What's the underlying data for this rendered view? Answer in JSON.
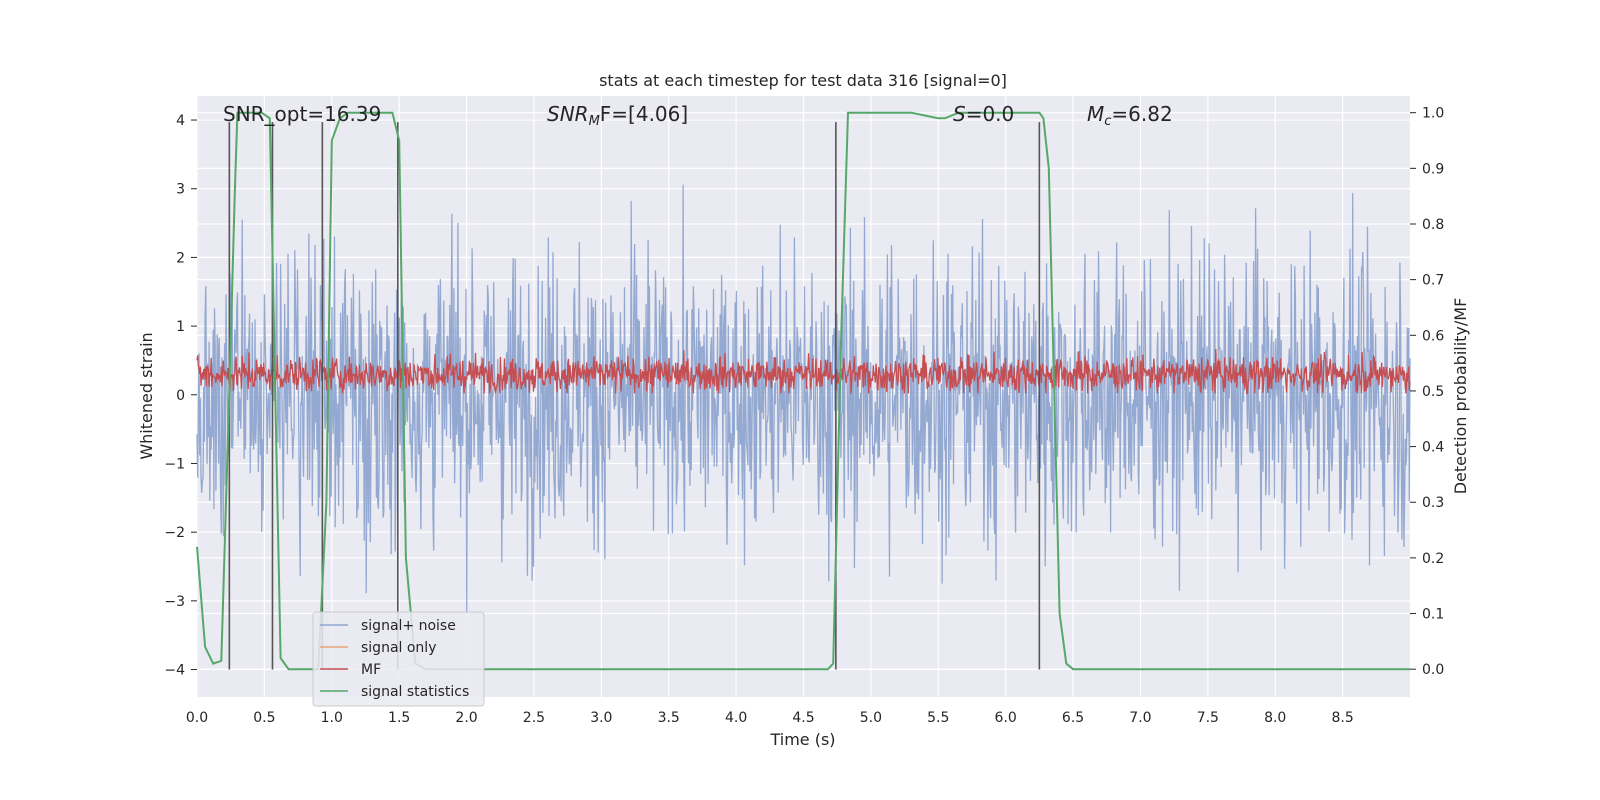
{
  "chart_data": {
    "type": "line",
    "title": "stats at each timestep for test data 316 [signal=0]",
    "xlabel": "Time (s)",
    "ylabel_left": "Whitened strain",
    "ylabel_right": "Detection probability/MF",
    "xlim": [
      0.0,
      9.0
    ],
    "ylim_left": [
      -4.4,
      4.35
    ],
    "ylim_right": [
      -0.05,
      1.03
    ],
    "xticks": [
      "0.0",
      "0.5",
      "1.0",
      "1.5",
      "2.0",
      "2.5",
      "3.0",
      "3.5",
      "4.0",
      "4.5",
      "5.0",
      "5.5",
      "6.0",
      "6.5",
      "7.0",
      "7.5",
      "8.0",
      "8.5"
    ],
    "yticks_left": [
      "4",
      "3",
      "2",
      "1",
      "0",
      "−1",
      "−2",
      "−3",
      "−4"
    ],
    "yticks_right": [
      "1.0",
      "0.9",
      "0.8",
      "0.7",
      "0.6",
      "0.5",
      "0.4",
      "0.3",
      "0.2",
      "0.1",
      "0.0"
    ],
    "grid": true,
    "annotations": {
      "snr_opt": "SNR_opt=16.39",
      "snr_mf_prefix": "SNR",
      "snr_mf_sub": "M",
      "snr_mf_suffix": "F=[4.06]",
      "s_label": "S",
      "s_value": "=0.0",
      "mc_label": "M",
      "mc_sub": "c",
      "mc_value": "=6.82"
    },
    "legend": {
      "position": "lower-left",
      "entries": [
        "signal+ noise",
        "signal only",
        "MF",
        "signal statistics"
      ]
    },
    "colors": {
      "signal_noise": "#8fa5cf",
      "signal_only": "#e8a27c",
      "mf": "#c44e52",
      "signal_statistics": "#55a868",
      "vlines": "#555555",
      "plot_bg": "#eaeaf2",
      "grid": "#ffffff"
    },
    "series": [
      {
        "name": "signal statistics",
        "axis": "right",
        "x": [
          0.0,
          0.06,
          0.12,
          0.18,
          0.24,
          0.28,
          0.3,
          0.33,
          0.36,
          0.42,
          0.48,
          0.54,
          0.58,
          0.62,
          0.68,
          0.8,
          0.9,
          0.96,
          1.0,
          1.06,
          1.12,
          1.2,
          1.3,
          1.4,
          1.45,
          1.5,
          1.55,
          1.62,
          1.7,
          2.0,
          3.0,
          4.0,
          4.5,
          4.68,
          4.72,
          4.78,
          4.83,
          5.0,
          5.3,
          5.4,
          5.5,
          5.55,
          5.65,
          5.8,
          6.0,
          6.2,
          6.25,
          6.28,
          6.32,
          6.36,
          6.4,
          6.45,
          6.5,
          7.0,
          8.0,
          9.0
        ],
        "y": [
          0.22,
          0.04,
          0.01,
          0.015,
          0.5,
          0.85,
          1.0,
          1.0,
          1.0,
          1.0,
          1.0,
          0.99,
          0.5,
          0.02,
          0.0,
          0.0,
          0.0,
          0.3,
          0.95,
          0.99,
          1.0,
          1.0,
          1.0,
          1.0,
          1.0,
          0.95,
          0.2,
          0.01,
          0.0,
          0.0,
          0.0,
          0.0,
          0.0,
          0.0,
          0.01,
          0.6,
          1.0,
          1.0,
          1.0,
          0.995,
          0.99,
          0.99,
          1.0,
          1.0,
          1.0,
          1.0,
          1.0,
          0.99,
          0.9,
          0.5,
          0.1,
          0.01,
          0.0,
          0.0,
          0.0,
          0.0
        ]
      },
      {
        "name": "signal+ noise",
        "axis": "left",
        "description_range": [
          -4.0,
          4.0
        ],
        "samples": 1800
      },
      {
        "name": "MF",
        "axis": "left",
        "description_range": [
          0.0,
          1.0
        ],
        "samples": 1800
      }
    ],
    "vlines": [
      0.24,
      0.56,
      0.93,
      1.49,
      4.74,
      6.25
    ]
  }
}
